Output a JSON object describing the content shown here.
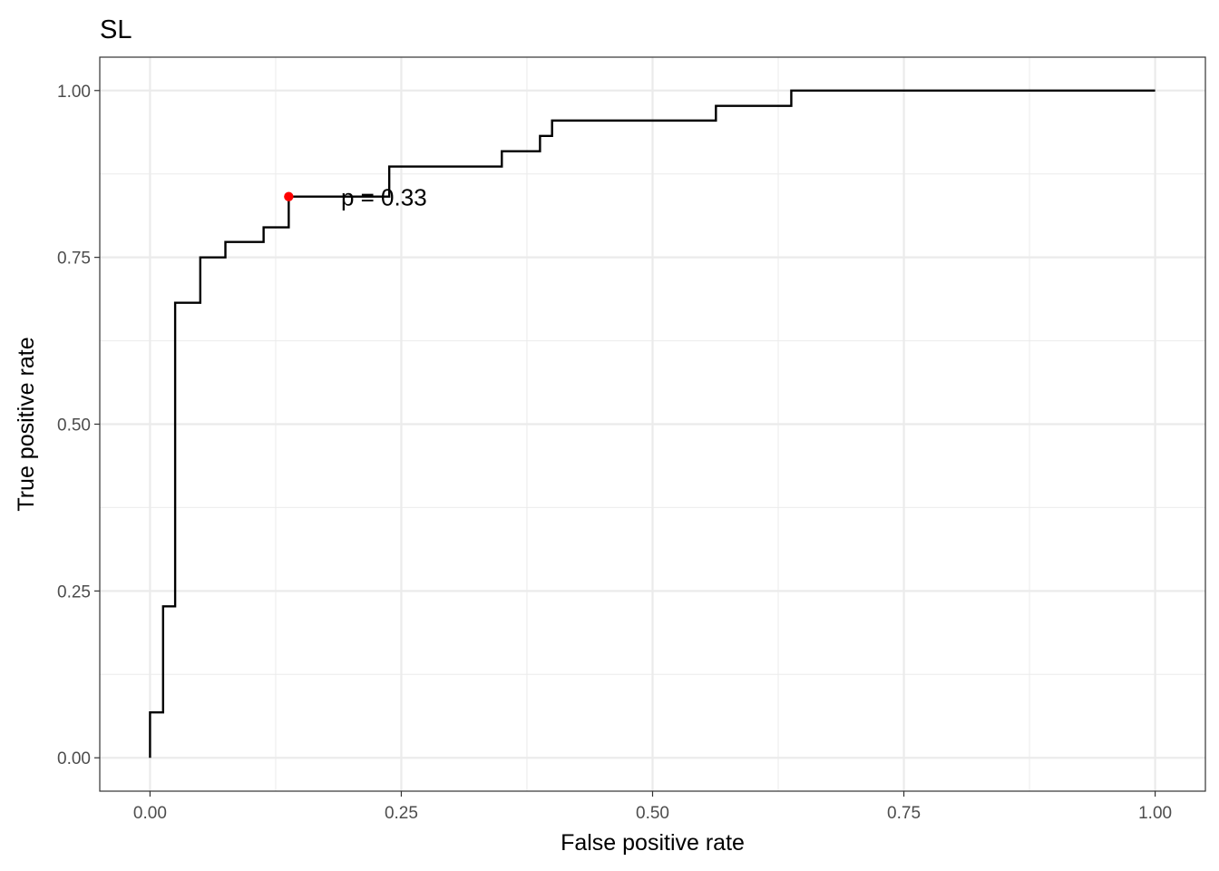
{
  "chart_data": {
    "type": "line",
    "title": "SL",
    "xlabel": "False positive rate",
    "ylabel": "True positive rate",
    "xlim": [
      -0.05,
      1.05
    ],
    "ylim": [
      -0.05,
      1.05
    ],
    "x_ticks": [
      0.0,
      0.25,
      0.5,
      0.75,
      1.0
    ],
    "x_tick_labels": [
      "0.00",
      "0.25",
      "0.50",
      "0.75",
      "1.00"
    ],
    "y_ticks": [
      0.0,
      0.25,
      0.5,
      0.75,
      1.0
    ],
    "y_tick_labels": [
      "0.00",
      "0.25",
      "0.50",
      "0.75",
      "1.00"
    ],
    "grid": true,
    "step": "horizontal-then-vertical",
    "series": [
      {
        "color": "#000000",
        "points": [
          [
            0.0,
            0.0
          ],
          [
            0.0,
            0.068
          ],
          [
            0.013,
            0.068
          ],
          [
            0.013,
            0.227
          ],
          [
            0.025,
            0.227
          ],
          [
            0.025,
            0.682
          ],
          [
            0.05,
            0.682
          ],
          [
            0.05,
            0.75
          ],
          [
            0.075,
            0.75
          ],
          [
            0.075,
            0.773
          ],
          [
            0.113,
            0.773
          ],
          [
            0.113,
            0.795
          ],
          [
            0.138,
            0.795
          ],
          [
            0.138,
            0.841
          ],
          [
            0.238,
            0.841
          ],
          [
            0.238,
            0.886
          ],
          [
            0.35,
            0.886
          ],
          [
            0.35,
            0.909
          ],
          [
            0.388,
            0.909
          ],
          [
            0.388,
            0.932
          ],
          [
            0.4,
            0.932
          ],
          [
            0.4,
            0.955
          ],
          [
            0.563,
            0.955
          ],
          [
            0.563,
            0.977
          ],
          [
            0.638,
            0.977
          ],
          [
            0.638,
            1.0
          ],
          [
            1.0,
            1.0
          ]
        ]
      }
    ],
    "highlight_point": {
      "x": 0.138,
      "y": 0.841,
      "color": "#ff0000"
    },
    "annotation": {
      "text": "p = 0.33",
      "x": 0.19,
      "y": 0.841
    }
  }
}
